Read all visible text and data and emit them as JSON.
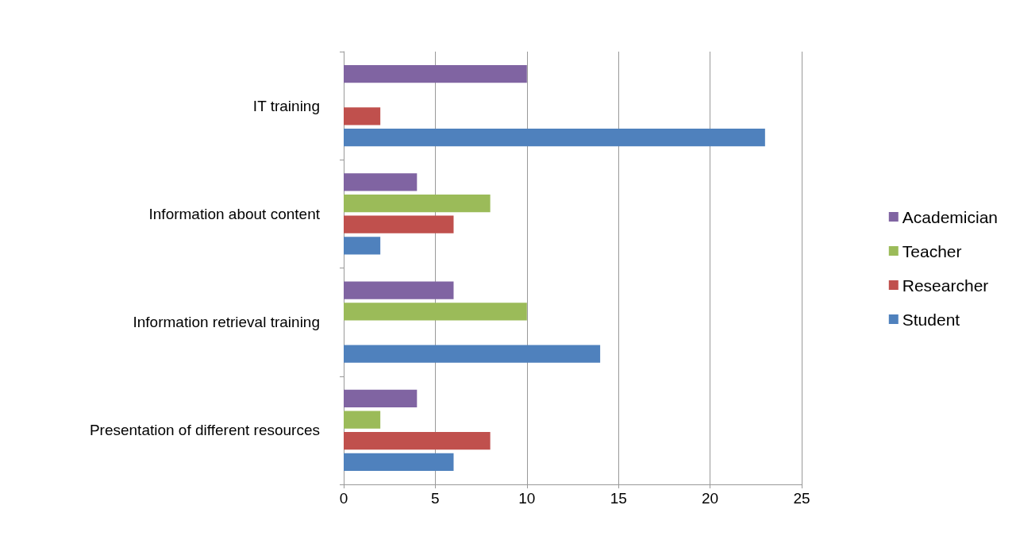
{
  "chart_data": {
    "type": "bar",
    "orientation": "horizontal",
    "categories": [
      "IT training",
      "Information about content",
      "Information retrieval training",
      "Presentation of different resources"
    ],
    "series": [
      {
        "name": "Academician",
        "color": "#8064a2",
        "values": [
          10,
          4,
          6,
          4
        ]
      },
      {
        "name": "Teacher",
        "color": "#9bbb59",
        "values": [
          0,
          8,
          10,
          2
        ]
      },
      {
        "name": "Researcher",
        "color": "#c0504d",
        "values": [
          2,
          6,
          0,
          8
        ]
      },
      {
        "name": "Student",
        "color": "#4f81bd",
        "values": [
          23,
          2,
          14,
          6
        ]
      }
    ],
    "xlim": [
      0,
      25
    ],
    "xticks": [
      0,
      5,
      10,
      15,
      20,
      25
    ],
    "grid": "x",
    "legend": "right"
  }
}
